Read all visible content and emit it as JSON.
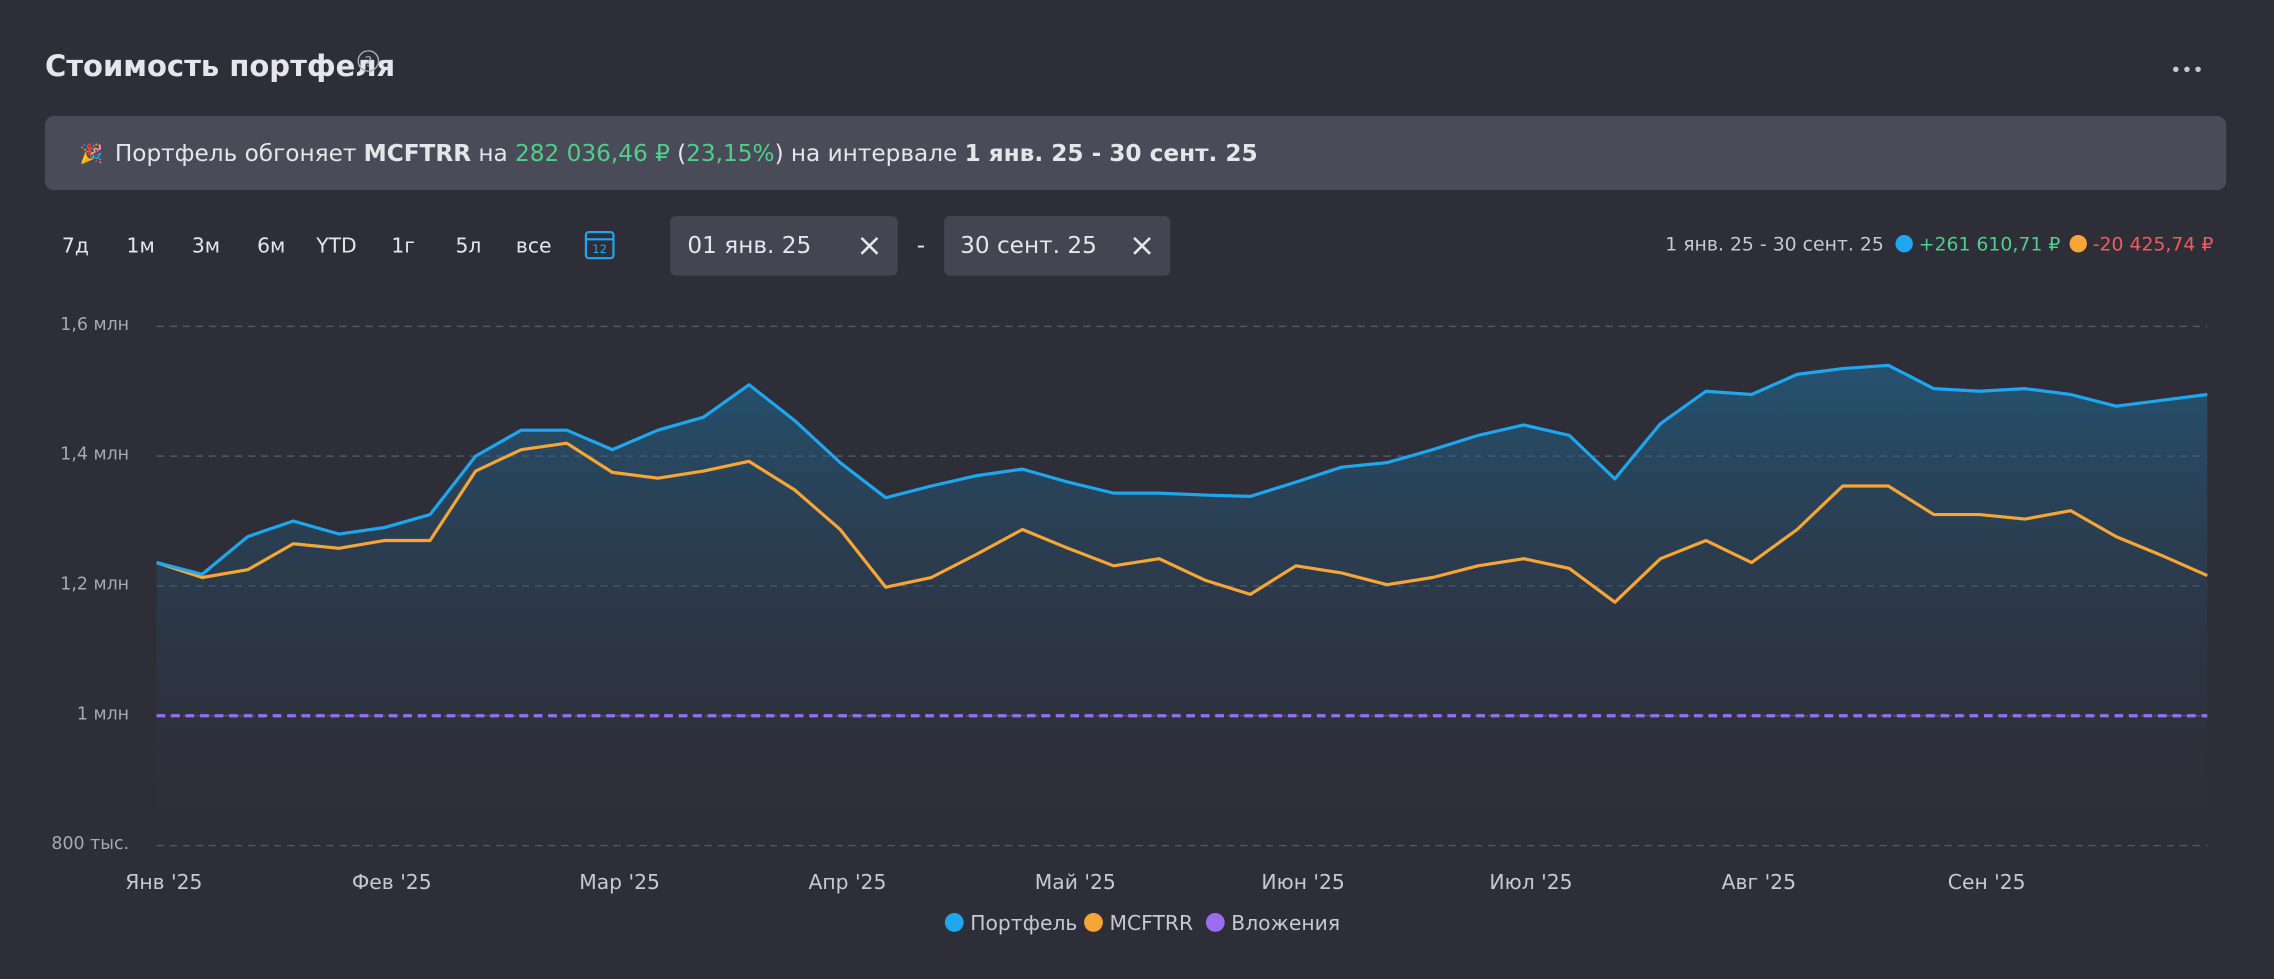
{
  "header": {
    "title": "Стоимость портфеля",
    "help": "?",
    "menu": "•••"
  },
  "banner": {
    "icon": "🎉",
    "lead": "Портфель обгоняет",
    "benchmark": "MCFTRR",
    "on": "на",
    "amount": "282 036,46 ₽",
    "paren_open": "(",
    "pct": "23,15%",
    "paren_close": ")",
    "interval_word": "на интервале",
    "interval": "1 янв. 25 - 30 сент. 25"
  },
  "controls": {
    "periods": [
      "7д",
      "1м",
      "3м",
      "6м",
      "YTD",
      "1г",
      "5л",
      "все"
    ],
    "calendar_day": "12",
    "date_from": "01 янв. 25",
    "date_sep": "-",
    "date_to": "30 сент. 25"
  },
  "summary": {
    "interval": "1 янв. 25 - 30 сент. 25",
    "portfolio_change": "+261 610,71 ₽",
    "benchmark_change": "-20 425,74 ₽"
  },
  "chart_data": {
    "type": "line",
    "categories": [
      "Янв '25",
      null,
      null,
      null,
      null,
      "Фев '25",
      null,
      null,
      null,
      null,
      "Мар '25",
      null,
      null,
      null,
      null,
      "Апр '25",
      null,
      null,
      null,
      null,
      "Май '25",
      null,
      null,
      null,
      null,
      "Июн '25",
      null,
      null,
      null,
      null,
      "Июл '25",
      null,
      null,
      null,
      null,
      "Авг '25",
      null,
      null,
      null,
      null,
      "Сен '25",
      null,
      null,
      null,
      null,
      null
    ],
    "series": [
      {
        "name": "Портфель",
        "color": "#1ea7ef",
        "area": true,
        "values": [
          1236000,
          1218000,
          1276000,
          1300000,
          1280000,
          1290000,
          1310000,
          1400000,
          1440000,
          1440000,
          1410000,
          1440000,
          1460000,
          1510000,
          1455000,
          1390000,
          1336000,
          1354000,
          1370000,
          1380000,
          1360000,
          1343000,
          1343000,
          1340000,
          1338000,
          1360000,
          1383000,
          1390000,
          1410000,
          1432000,
          1448000,
          1432000,
          1365000,
          1450000,
          1500000,
          1495000,
          1526000,
          1535000,
          1540000,
          1504000,
          1500000,
          1504000,
          1495000,
          1477000,
          1486000,
          1495000
        ]
      },
      {
        "name": "MCFTRR",
        "color": "#f6a536",
        "values": [
          1236000,
          1213000,
          1225000,
          1265000,
          1258000,
          1270000,
          1270000,
          1377000,
          1410000,
          1420000,
          1375000,
          1366000,
          1377000,
          1392000,
          1348000,
          1287000,
          1198000,
          1213000,
          1249000,
          1287000,
          1258000,
          1231000,
          1242000,
          1209000,
          1187000,
          1231000,
          1220000,
          1202000,
          1213000,
          1231000,
          1242000,
          1227000,
          1175000,
          1242000,
          1270000,
          1236000,
          1287000,
          1354000,
          1354000,
          1310000,
          1310000,
          1303000,
          1316000,
          1276000,
          1247000,
          1216000
        ]
      },
      {
        "name": "Вложения",
        "color": "#9b6cf0",
        "dashed": true,
        "values": [
          1000000,
          1000000,
          1000000,
          1000000,
          1000000,
          1000000,
          1000000,
          1000000,
          1000000,
          1000000,
          1000000,
          1000000,
          1000000,
          1000000,
          1000000,
          1000000,
          1000000,
          1000000,
          1000000,
          1000000,
          1000000,
          1000000,
          1000000,
          1000000,
          1000000,
          1000000,
          1000000,
          1000000,
          1000000,
          1000000,
          1000000,
          1000000,
          1000000,
          1000000,
          1000000,
          1000000,
          1000000,
          1000000,
          1000000,
          1000000,
          1000000,
          1000000,
          1000000,
          1000000,
          1000000,
          1000000
        ]
      }
    ],
    "ylim": [
      800000,
      1600000
    ],
    "yticks": [
      {
        "value": 800000,
        "label": "800 тыс."
      },
      {
        "value": 1000000,
        "label": "1 млн"
      },
      {
        "value": 1200000,
        "label": "1,2 млн"
      },
      {
        "value": 1400000,
        "label": "1,4 млн"
      },
      {
        "value": 1600000,
        "label": "1,6 млн"
      }
    ],
    "grid": true,
    "legend": "bottom"
  }
}
